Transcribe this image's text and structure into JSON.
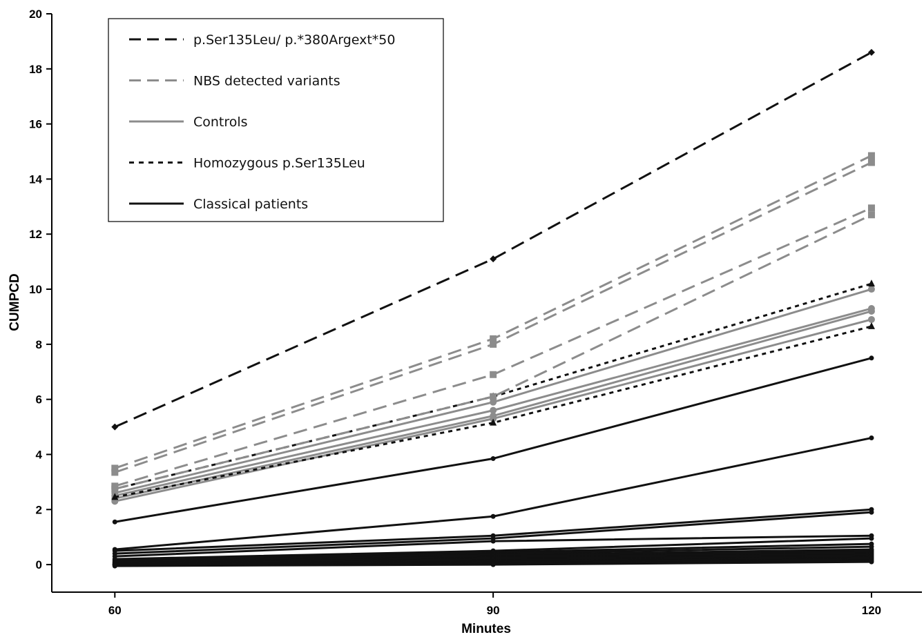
{
  "chart_data": {
    "type": "line",
    "title": "",
    "xlabel": "Minutes",
    "ylabel": "CUMPCD",
    "x": [
      60,
      90,
      120
    ],
    "xlim": [
      55,
      124
    ],
    "ylim": [
      -1,
      20
    ],
    "xticks": [
      60,
      90,
      120
    ],
    "yticks": [
      0,
      2,
      4,
      6,
      8,
      10,
      12,
      14,
      16,
      18,
      20
    ],
    "grid": false,
    "legend_position": "top-left",
    "legend": [
      {
        "label": "p.Ser135Leu/ p.*380Argext*50",
        "style": "dashed",
        "color": "#111111"
      },
      {
        "label": "NBS detected variants",
        "style": "dashed",
        "color": "#8c8c8c"
      },
      {
        "label": "Controls",
        "style": "solid",
        "color": "#8c8c8c"
      },
      {
        "label": "Homozygous p.Ser135Leu",
        "style": "dotted",
        "color": "#111111"
      },
      {
        "label": "Classical patients",
        "style": "solid",
        "color": "#111111"
      }
    ],
    "groups": [
      {
        "label": "p.Ser135Leu/ p.*380Argext*50",
        "style": "dashed",
        "color": "#111111",
        "marker": "diamond",
        "series": [
          [
            5.0,
            11.1,
            18.6
          ]
        ]
      },
      {
        "label": "NBS detected variants",
        "style": "dashed",
        "color": "#8c8c8c",
        "marker": "square",
        "series": [
          [
            3.5,
            8.2,
            14.85
          ],
          [
            3.35,
            8.0,
            14.6
          ],
          [
            2.85,
            6.9,
            12.95
          ],
          [
            2.75,
            6.1,
            12.7
          ]
        ]
      },
      {
        "label": "Controls",
        "style": "solid",
        "color": "#8c8c8c",
        "marker": "circle",
        "series": [
          [
            2.6,
            5.9,
            10.0
          ],
          [
            2.5,
            5.6,
            9.3
          ],
          [
            2.4,
            5.4,
            9.2
          ],
          [
            2.3,
            5.3,
            8.9
          ]
        ]
      },
      {
        "label": "Homozygous p.Ser135Leu",
        "style": "dotted",
        "color": "#111111",
        "marker": "triangle",
        "series": [
          [
            2.75,
            6.1,
            10.2
          ],
          [
            2.45,
            5.15,
            8.65
          ]
        ]
      },
      {
        "label": "Classical patients",
        "style": "solid",
        "color": "#111111",
        "marker": "dot",
        "series": [
          [
            1.55,
            3.85,
            7.5
          ],
          [
            0.55,
            1.75,
            4.6
          ],
          [
            0.5,
            1.05,
            2.0
          ],
          [
            0.4,
            0.95,
            1.9
          ],
          [
            0.3,
            0.85,
            1.05
          ],
          [
            0.2,
            0.5,
            0.95
          ],
          [
            0.15,
            0.45,
            0.75
          ],
          [
            0.1,
            0.4,
            0.65
          ],
          [
            0.08,
            0.35,
            0.55
          ],
          [
            0.05,
            0.3,
            0.5
          ],
          [
            0.03,
            0.25,
            0.45
          ],
          [
            0.02,
            0.2,
            0.4
          ],
          [
            0.0,
            0.15,
            0.35
          ],
          [
            0.0,
            0.1,
            0.3
          ],
          [
            0.0,
            0.08,
            0.25
          ],
          [
            -0.02,
            0.05,
            0.2
          ],
          [
            -0.03,
            0.03,
            0.15
          ],
          [
            -0.05,
            0.0,
            0.1
          ]
        ]
      }
    ]
  }
}
